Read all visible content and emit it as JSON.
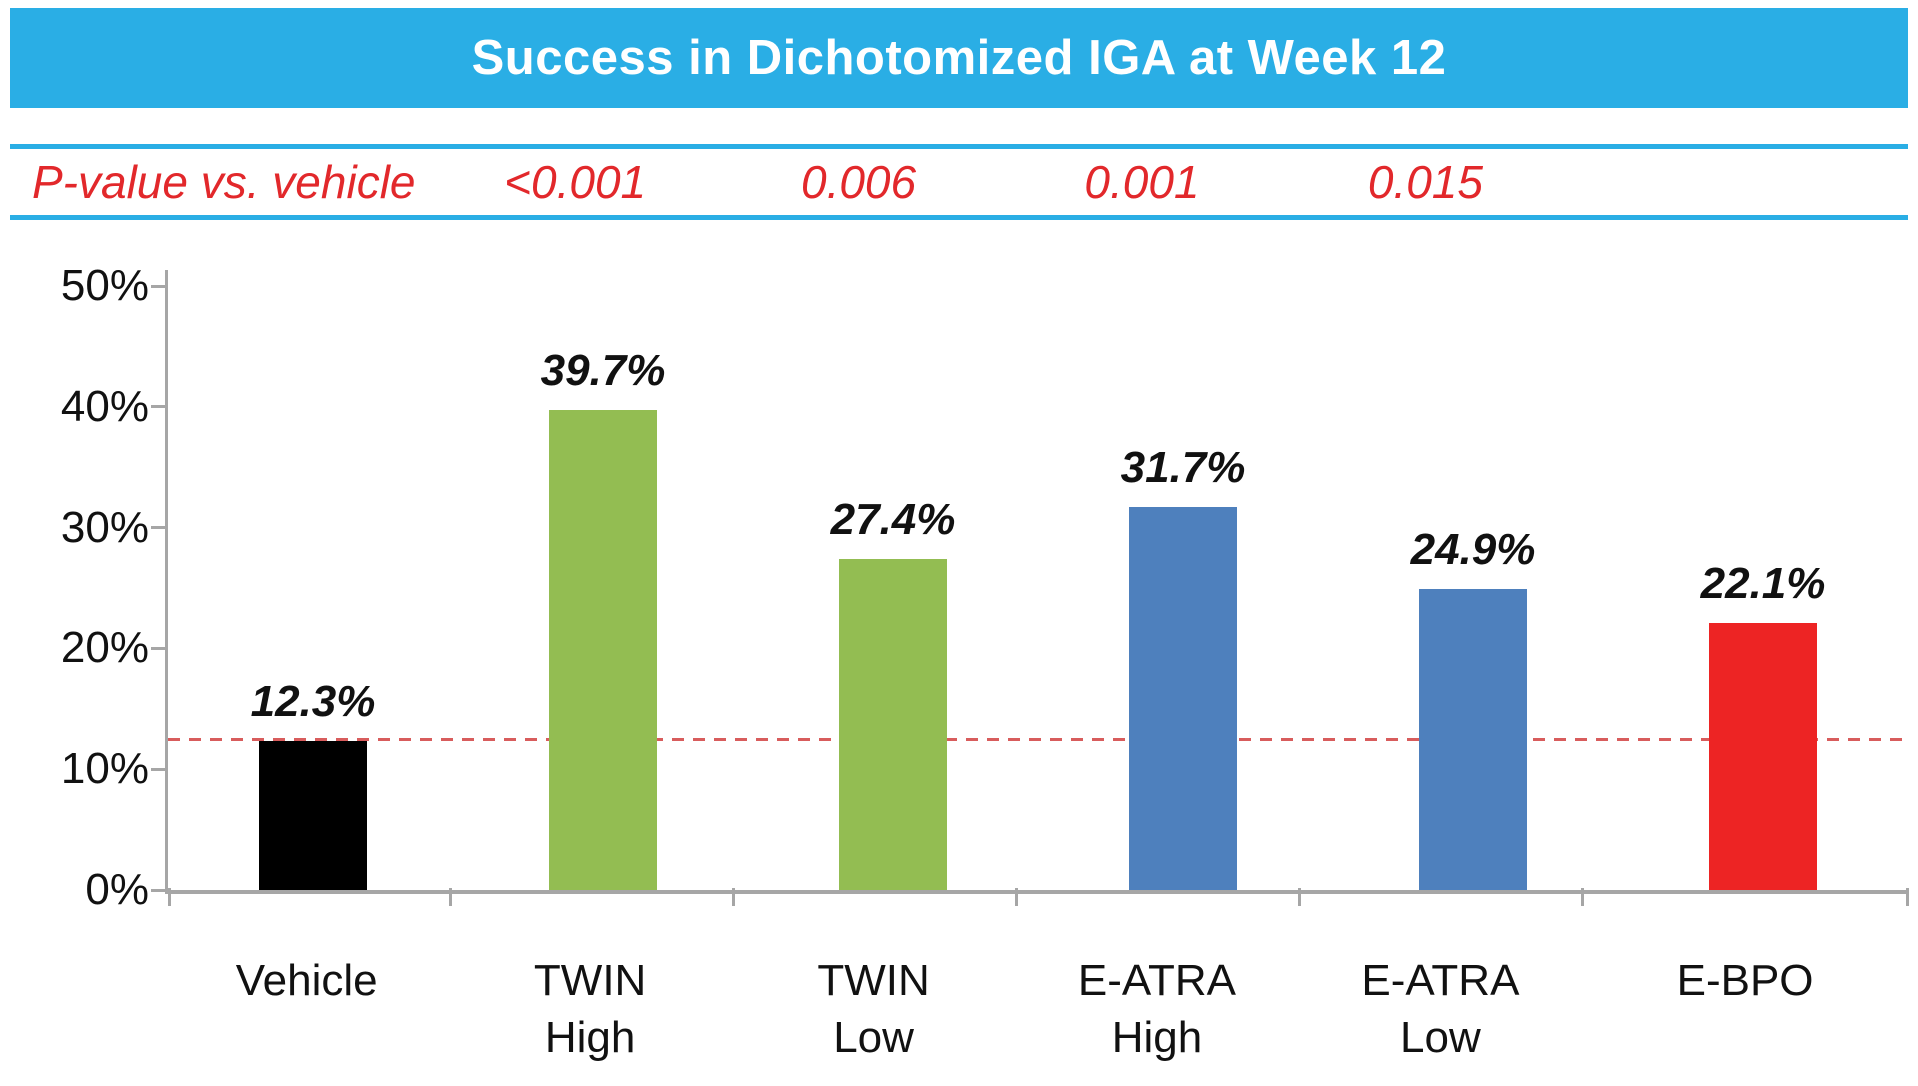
{
  "chart_data": {
    "type": "bar",
    "title": "Success in Dichotomized IGA at Week 12",
    "pvalue_label": "P-value vs. vehicle",
    "categories": [
      "Vehicle",
      "TWIN High",
      "TWIN Low",
      "E-ATRA High",
      "E-ATRA Low",
      "E-BPO"
    ],
    "category_lines": [
      [
        "Vehicle"
      ],
      [
        "TWIN",
        "High"
      ],
      [
        "TWIN",
        "Low"
      ],
      [
        "E-ATRA",
        "High"
      ],
      [
        "E-ATRA",
        "Low"
      ],
      [
        "E-BPO"
      ]
    ],
    "values": [
      12.3,
      39.7,
      27.4,
      31.7,
      24.9,
      22.1
    ],
    "value_labels": [
      "12.3%",
      "39.7%",
      "27.4%",
      "31.7%",
      "24.9%",
      "22.1%"
    ],
    "bar_colors": [
      "#000000",
      "#93BD52",
      "#93BD52",
      "#4E80BD",
      "#4E80BD",
      "#ED2424"
    ],
    "p_values": [
      null,
      "<0.001",
      "0.006",
      "0.001",
      "0.015",
      null
    ],
    "ylim": [
      0,
      50
    ],
    "y_ticks": [
      "0%",
      "10%",
      "20%",
      "30%",
      "40%",
      "50%"
    ],
    "y_tick_values": [
      0,
      10,
      20,
      30,
      40,
      50
    ],
    "reference_line": {
      "value": 12.3,
      "style": "dashed",
      "color": "#D85C5C"
    },
    "grid": "off",
    "legend": "none",
    "colors": {
      "accent_band": "#2AAEE5",
      "pvalue_text": "#E2282B",
      "axis": "#A6A6A6"
    }
  }
}
